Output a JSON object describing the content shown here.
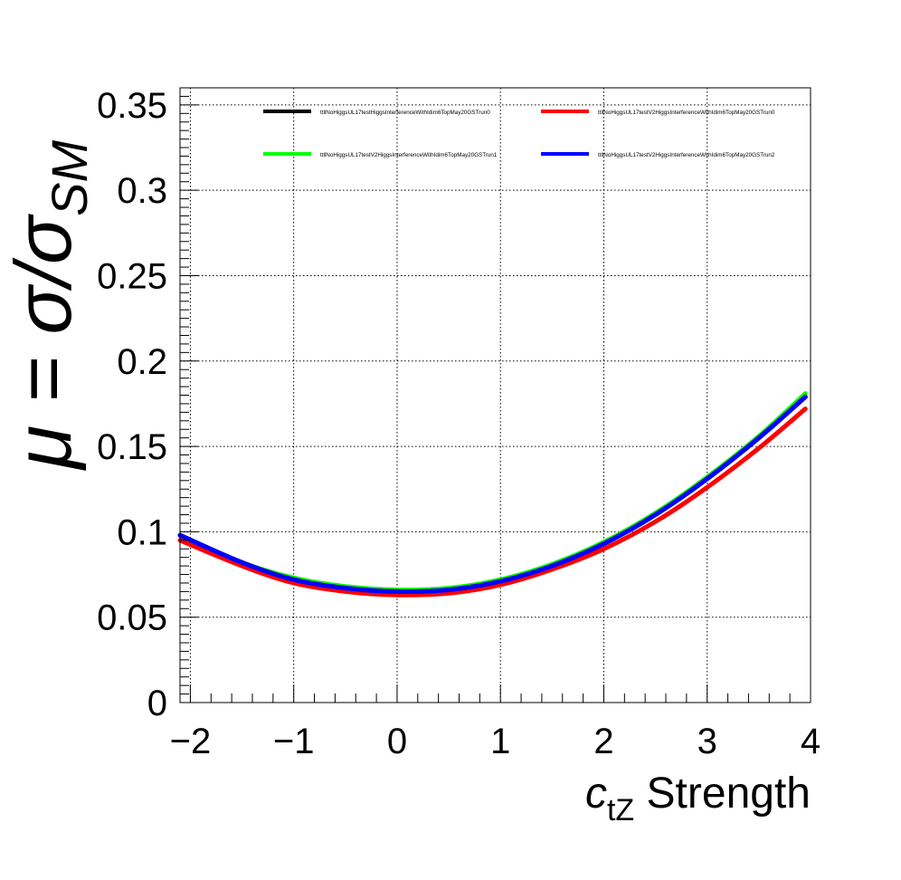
{
  "chart_data": {
    "type": "line",
    "xlabel": {
      "main": "c",
      "sub": "tZ",
      "rest": " Strength"
    },
    "ylabel": {
      "main": "μ = σ/σ",
      "sub": "SM"
    },
    "xlim": [
      -2.1,
      4
    ],
    "ylim": [
      0,
      0.36
    ],
    "xticks": [
      -2,
      -1,
      0,
      1,
      2,
      3,
      4
    ],
    "xtick_labels": [
      "−2",
      "−1",
      "0",
      "1",
      "2",
      "3",
      "4"
    ],
    "yticks": [
      0,
      0.05,
      0.1,
      0.15,
      0.2,
      0.25,
      0.3,
      0.35
    ],
    "ytick_labels": [
      "0",
      "0.05",
      "0.1",
      "0.15",
      "0.2",
      "0.25",
      "0.3",
      "0.35"
    ],
    "grid": true,
    "legend_position": "top",
    "series": [
      {
        "name": "ttllNoHiggsUL17testHiggsInterferenceWithIdim6TopMay20GSTrun0",
        "color": "#000000",
        "x": [
          -2.1,
          -1.5,
          -1,
          -0.5,
          0,
          0.5,
          1,
          1.5,
          2,
          2.5,
          3,
          3.5,
          3.95
        ],
        "y": [
          0.098,
          0.082,
          0.072,
          0.067,
          0.065,
          0.066,
          0.071,
          0.08,
          0.093,
          0.11,
          0.131,
          0.155,
          0.179
        ]
      },
      {
        "name": "ttllNoHiggsUL17testV2HiggsInterferenceWithIdim6TopMay20GSTrun0",
        "color": "#ff0000",
        "x": [
          -2.1,
          -1.5,
          -1,
          -0.5,
          0,
          0.5,
          1,
          1.5,
          2,
          2.5,
          3,
          3.5,
          3.95
        ],
        "y": [
          0.095,
          0.08,
          0.07,
          0.065,
          0.063,
          0.064,
          0.069,
          0.078,
          0.09,
          0.106,
          0.126,
          0.149,
          0.172
        ]
      },
      {
        "name": "ttllNoHiggsUL17testV2HiggsInterferenceWithIdim6TopMay20GSTrun1",
        "color": "#00ff00",
        "x": [
          -2.1,
          -1.5,
          -1,
          -0.5,
          0,
          0.5,
          1,
          1.5,
          2,
          2.5,
          3,
          3.5,
          3.95
        ],
        "y": [
          0.098,
          0.082,
          0.073,
          0.068,
          0.066,
          0.067,
          0.072,
          0.081,
          0.094,
          0.111,
          0.132,
          0.156,
          0.181
        ]
      },
      {
        "name": "ttllNoHiggsUL17testV2HiggsInterferenceWithIdim6TopMay20GSTrun2",
        "color": "#0000ff",
        "x": [
          -2.1,
          -1.5,
          -1,
          -0.5,
          0,
          0.5,
          1,
          1.5,
          2,
          2.5,
          3,
          3.5,
          3.95
        ],
        "y": [
          0.098,
          0.082,
          0.072,
          0.067,
          0.065,
          0.066,
          0.071,
          0.08,
          0.093,
          0.11,
          0.131,
          0.155,
          0.179
        ]
      }
    ]
  }
}
